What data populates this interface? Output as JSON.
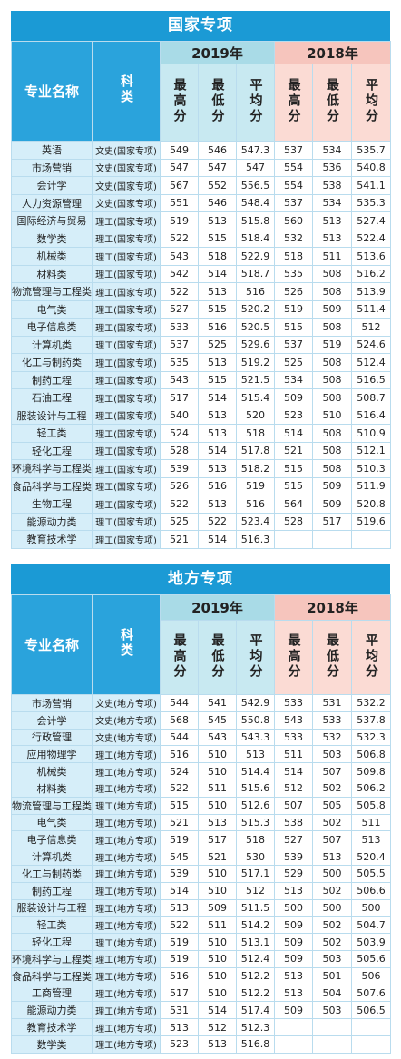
{
  "tables": [
    {
      "title": "国家专项",
      "headers": {
        "name": "专业名称",
        "category": "科类",
        "years": [
          "2019年",
          "2018年"
        ],
        "stats": [
          "最高分",
          "最低分",
          "平均分"
        ]
      },
      "rows": [
        {
          "name": "英语",
          "category": "文史(国家专项)",
          "y2019": [
            549,
            546,
            547.3
          ],
          "y2018": [
            537,
            534,
            535.7
          ]
        },
        {
          "name": "市场营销",
          "category": "文史(国家专项)",
          "y2019": [
            547,
            547,
            547
          ],
          "y2018": [
            554,
            536,
            540.8
          ]
        },
        {
          "name": "会计学",
          "category": "文史(国家专项)",
          "y2019": [
            567,
            552,
            556.5
          ],
          "y2018": [
            554,
            538,
            541.1
          ]
        },
        {
          "name": "人力资源管理",
          "category": "文史(国家专项)",
          "y2019": [
            551,
            546,
            548.4
          ],
          "y2018": [
            537,
            534,
            535.3
          ]
        },
        {
          "name": "国际经济与贸易",
          "category": "理工(国家专项)",
          "y2019": [
            519,
            513,
            515.8
          ],
          "y2018": [
            560,
            513,
            527.4
          ]
        },
        {
          "name": "数学类",
          "category": "理工(国家专项)",
          "y2019": [
            522,
            515,
            518.4
          ],
          "y2018": [
            532,
            513,
            522.4
          ]
        },
        {
          "name": "机械类",
          "category": "理工(国家专项)",
          "y2019": [
            543,
            518,
            522.9
          ],
          "y2018": [
            518,
            511,
            513.6
          ]
        },
        {
          "name": "材料类",
          "category": "理工(国家专项)",
          "y2019": [
            542,
            514,
            518.7
          ],
          "y2018": [
            535,
            508,
            516.2
          ]
        },
        {
          "name": "物流管理与工程类",
          "category": "理工(国家专项)",
          "y2019": [
            522,
            513,
            516
          ],
          "y2018": [
            526,
            508,
            513.9
          ]
        },
        {
          "name": "电气类",
          "category": "理工(国家专项)",
          "y2019": [
            527,
            515,
            520.2
          ],
          "y2018": [
            519,
            509,
            511.4
          ]
        },
        {
          "name": "电子信息类",
          "category": "理工(国家专项)",
          "y2019": [
            533,
            516,
            520.5
          ],
          "y2018": [
            515,
            508,
            512
          ]
        },
        {
          "name": "计算机类",
          "category": "理工(国家专项)",
          "y2019": [
            537,
            525,
            529.6
          ],
          "y2018": [
            537,
            519,
            524.6
          ]
        },
        {
          "name": "化工与制药类",
          "category": "理工(国家专项)",
          "y2019": [
            535,
            513,
            519.2
          ],
          "y2018": [
            525,
            508,
            512.4
          ]
        },
        {
          "name": "制药工程",
          "category": "理工(国家专项)",
          "y2019": [
            543,
            515,
            521.5
          ],
          "y2018": [
            534,
            508,
            516.5
          ]
        },
        {
          "name": "石油工程",
          "category": "理工(国家专项)",
          "y2019": [
            517,
            514,
            515.4
          ],
          "y2018": [
            509,
            508,
            508.7
          ]
        },
        {
          "name": "服装设计与工程",
          "category": "理工(国家专项)",
          "y2019": [
            540,
            513,
            520
          ],
          "y2018": [
            523,
            510,
            516.4
          ]
        },
        {
          "name": "轻工类",
          "category": "理工(国家专项)",
          "y2019": [
            524,
            513,
            518
          ],
          "y2018": [
            514,
            508,
            510.9
          ]
        },
        {
          "name": "轻化工程",
          "category": "理工(国家专项)",
          "y2019": [
            528,
            514,
            517.8
          ],
          "y2018": [
            521,
            508,
            512.1
          ]
        },
        {
          "name": "环境科学与工程类",
          "category": "理工(国家专项)",
          "y2019": [
            539,
            513,
            518.2
          ],
          "y2018": [
            515,
            508,
            510.3
          ]
        },
        {
          "name": "食品科学与工程类",
          "category": "理工(国家专项)",
          "y2019": [
            526,
            516,
            519
          ],
          "y2018": [
            515,
            509,
            511.9
          ]
        },
        {
          "name": "生物工程",
          "category": "理工(国家专项)",
          "y2019": [
            522,
            513,
            516
          ],
          "y2018": [
            564,
            509,
            520.8
          ]
        },
        {
          "name": "能源动力类",
          "category": "理工(国家专项)",
          "y2019": [
            525,
            522,
            523.4
          ],
          "y2018": [
            528,
            517,
            519.6
          ]
        },
        {
          "name": "教育技术学",
          "category": "理工(国家专项)",
          "y2019": [
            521,
            514,
            516.3
          ]
        }
      ]
    },
    {
      "title": "地方专项",
      "headers": {
        "name": "专业名称",
        "category": "科类",
        "years": [
          "2019年",
          "2018年"
        ],
        "stats": [
          "最高分",
          "最低分",
          "平均分"
        ]
      },
      "rows": [
        {
          "name": "市场营销",
          "category": "文史(地方专项)",
          "y2019": [
            544,
            541,
            542.9
          ],
          "y2018": [
            533,
            531,
            532.2
          ]
        },
        {
          "name": "会计学",
          "category": "文史(地方专项)",
          "y2019": [
            568,
            545,
            550.8
          ],
          "y2018": [
            543,
            533,
            537.8
          ]
        },
        {
          "name": "行政管理",
          "category": "文史(地方专项)",
          "y2019": [
            544,
            543,
            543.3
          ],
          "y2018": [
            533,
            532,
            532.3
          ]
        },
        {
          "name": "应用物理学",
          "category": "理工(地方专项)",
          "y2019": [
            516,
            510,
            513
          ],
          "y2018": [
            511,
            503,
            506.8
          ]
        },
        {
          "name": "机械类",
          "category": "理工(地方专项)",
          "y2019": [
            524,
            510,
            514.4
          ],
          "y2018": [
            514,
            507,
            509.8
          ]
        },
        {
          "name": "材料类",
          "category": "理工(地方专项)",
          "y2019": [
            522,
            511,
            515.6
          ],
          "y2018": [
            512,
            502,
            506.2
          ]
        },
        {
          "name": "物流管理与工程类",
          "category": "理工(地方专项)",
          "y2019": [
            515,
            510,
            512.6
          ],
          "y2018": [
            507,
            505,
            505.8
          ]
        },
        {
          "name": "电气类",
          "category": "理工(地方专项)",
          "y2019": [
            521,
            513,
            515.3
          ],
          "y2018": [
            538,
            502,
            511
          ]
        },
        {
          "name": "电子信息类",
          "category": "理工(地方专项)",
          "y2019": [
            519,
            517,
            518
          ],
          "y2018": [
            527,
            507,
            513
          ]
        },
        {
          "name": "计算机类",
          "category": "理工(地方专项)",
          "y2019": [
            545,
            521,
            530
          ],
          "y2018": [
            539,
            513,
            520.4
          ]
        },
        {
          "name": "化工与制药类",
          "category": "理工(地方专项)",
          "y2019": [
            539,
            510,
            517.1
          ],
          "y2018": [
            529,
            500,
            505.5
          ]
        },
        {
          "name": "制药工程",
          "category": "理工(地方专项)",
          "y2019": [
            514,
            510,
            512
          ],
          "y2018": [
            513,
            502,
            506.6
          ]
        },
        {
          "name": "服装设计与工程",
          "category": "理工(地方专项)",
          "y2019": [
            513,
            509,
            511.5
          ],
          "y2018": [
            500,
            500,
            500
          ]
        },
        {
          "name": "轻工类",
          "category": "理工(地方专项)",
          "y2019": [
            522,
            511,
            514.2
          ],
          "y2018": [
            509,
            502,
            504.7
          ]
        },
        {
          "name": "轻化工程",
          "category": "理工(地方专项)",
          "y2019": [
            519,
            510,
            513.1
          ],
          "y2018": [
            509,
            502,
            503.9
          ]
        },
        {
          "name": "环境科学与工程类",
          "category": "理工(地方专项)",
          "y2019": [
            519,
            510,
            512.4
          ],
          "y2018": [
            509,
            503,
            505.6
          ]
        },
        {
          "name": "食品科学与工程类",
          "category": "理工(地方专项)",
          "y2019": [
            516,
            510,
            512.2
          ],
          "y2018": [
            513,
            501,
            506
          ]
        },
        {
          "name": "工商管理",
          "category": "理工(地方专项)",
          "y2019": [
            517,
            510,
            512.2
          ],
          "y2018": [
            513,
            504,
            507.6
          ]
        },
        {
          "name": "能源动力类",
          "category": "理工(地方专项)",
          "y2019": [
            531,
            514,
            517.4
          ],
          "y2018": [
            509,
            503,
            506.5
          ]
        },
        {
          "name": "教育技术学",
          "category": "理工(地方专项)",
          "y2019": [
            513,
            512,
            512.3
          ]
        },
        {
          "name": "数学类",
          "category": "理工(地方专项)",
          "y2019": [
            523,
            513,
            516.8
          ]
        }
      ]
    }
  ]
}
